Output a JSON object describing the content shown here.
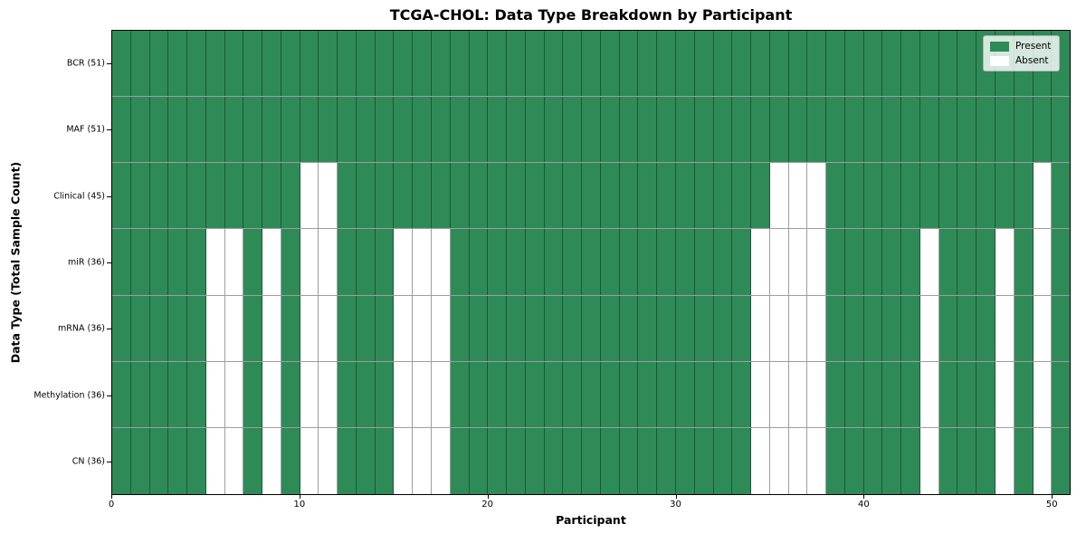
{
  "chart_data": {
    "type": "heatmap",
    "title": "TCGA-CHOL: Data Type Breakdown by Participant",
    "xlabel": "Participant",
    "ylabel": "Data Type (Total Sample Count)",
    "x_ticks": [
      0,
      10,
      20,
      30,
      40,
      50
    ],
    "n_participants": 51,
    "x_range": [
      0,
      51
    ],
    "grid": true,
    "legend_position": "upper right",
    "colors": {
      "present": "#2e8b57",
      "absent": "#ffffff",
      "gridline": "rgba(0,0,0,0.38)",
      "spine": "#000000"
    },
    "legend_items": [
      {
        "label": "Present",
        "color": "#2e8b57"
      },
      {
        "label": "Absent",
        "color": "#ffffff"
      }
    ],
    "rows": [
      {
        "label": "BCR (51)",
        "total_present": 51,
        "absent_participants": []
      },
      {
        "label": "MAF (51)",
        "total_present": 51,
        "absent_participants": []
      },
      {
        "label": "Clinical (45)",
        "total_present": 45,
        "absent_participants": [
          10,
          11,
          35,
          36,
          37,
          49
        ]
      },
      {
        "label": "miR (36)",
        "total_present": 36,
        "absent_participants": [
          5,
          6,
          8,
          10,
          11,
          15,
          16,
          17,
          34,
          35,
          36,
          37,
          43,
          47,
          49
        ]
      },
      {
        "label": "mRNA (36)",
        "total_present": 36,
        "absent_participants": [
          5,
          6,
          8,
          10,
          11,
          15,
          16,
          17,
          34,
          35,
          36,
          37,
          43,
          47,
          49
        ]
      },
      {
        "label": "Methylation (36)",
        "total_present": 36,
        "absent_participants": [
          5,
          6,
          8,
          10,
          11,
          15,
          16,
          17,
          34,
          35,
          36,
          37,
          43,
          47,
          49
        ]
      },
      {
        "label": "CN (36)",
        "total_present": 36,
        "absent_participants": [
          5,
          6,
          8,
          10,
          11,
          15,
          16,
          17,
          34,
          35,
          36,
          37,
          43,
          47,
          49
        ]
      }
    ]
  }
}
